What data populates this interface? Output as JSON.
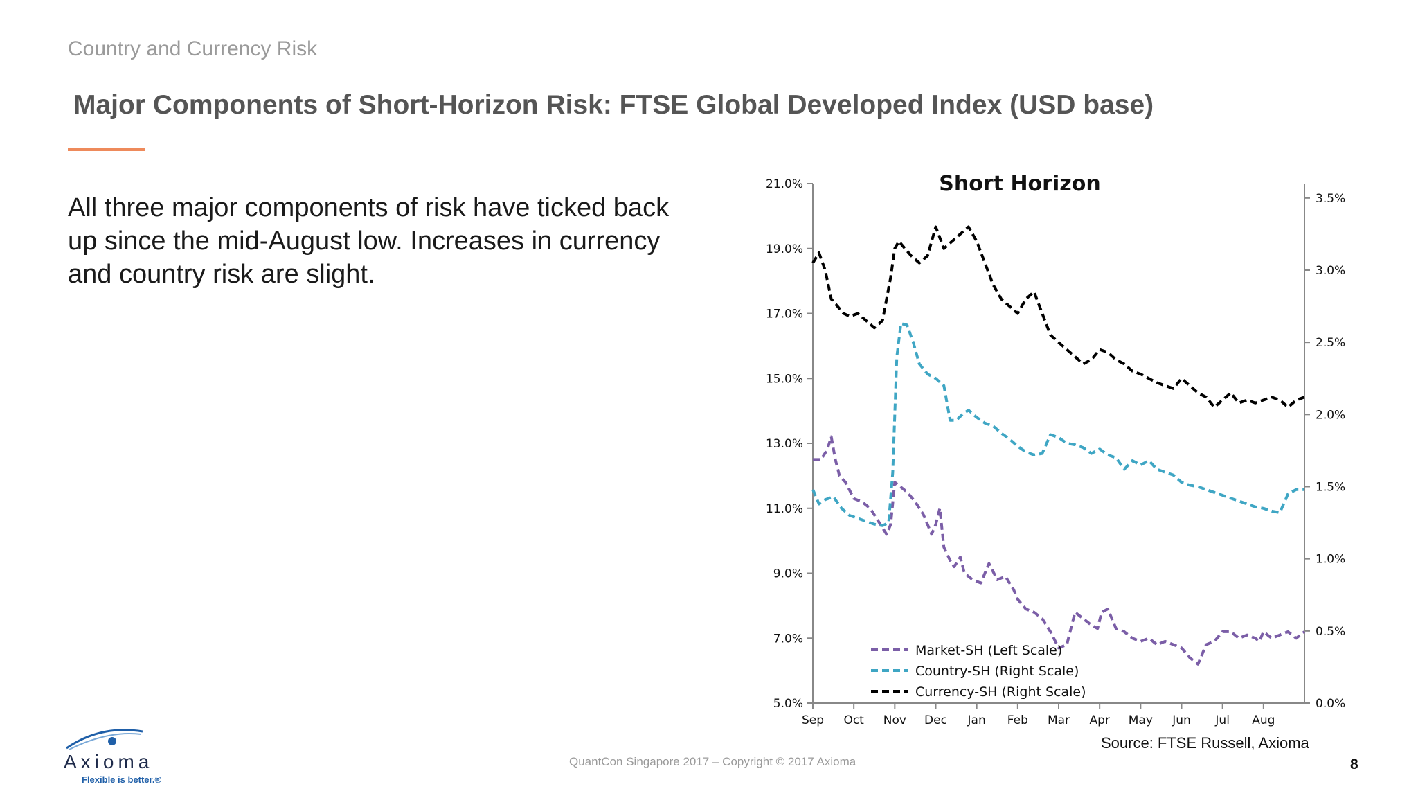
{
  "slide": {
    "section": "Country and Currency Risk",
    "title": "Major Components of Short-Horizon Risk: FTSE Global Developed Index (USD base)",
    "body": "All three major components of risk have ticked back up since the mid-August low. Increases in currency and country risk are slight.",
    "source": "Source: FTSE Russell, Axioma",
    "footer": "QuantCon Singapore 2017 – Copyright © 2017 Axioma",
    "page_number": "8",
    "logo": {
      "wordmark": "Axioma",
      "tagline": "Flexible is better.®"
    },
    "accent_color": "#ee8a5b"
  },
  "chart_data": {
    "type": "line",
    "title": "Short Horizon",
    "x_tick_labels": [
      "Sep",
      "Oct",
      "Nov",
      "Dec",
      "Jan",
      "Feb",
      "Mar",
      "Apr",
      "May",
      "Jun",
      "Jul",
      "Aug"
    ],
    "x_range": [
      0,
      12
    ],
    "y_left": {
      "ticks": [
        "5.0%",
        "7.0%",
        "9.0%",
        "11.0%",
        "13.0%",
        "15.0%",
        "17.0%",
        "19.0%",
        "21.0%"
      ],
      "range": [
        5,
        21
      ]
    },
    "y_right": {
      "ticks": [
        "0.0%",
        "0.5%",
        "1.0%",
        "1.5%",
        "2.0%",
        "2.5%",
        "3.0%",
        "3.5%"
      ],
      "range": [
        0,
        3.6
      ]
    },
    "legend_position": "bottom-left",
    "series": [
      {
        "name": "Market-SH (Left Scale)",
        "axis": "left",
        "color": "#7b5ea7",
        "x": [
          0,
          0.2,
          0.35,
          0.45,
          0.55,
          0.65,
          0.8,
          1.0,
          1.2,
          1.4,
          1.6,
          1.8,
          1.9,
          2.0,
          2.1,
          2.3,
          2.5,
          2.7,
          2.9,
          3.0,
          3.1,
          3.2,
          3.35,
          3.45,
          3.6,
          3.7,
          3.9,
          4.1,
          4.3,
          4.5,
          4.7,
          4.9,
          5.0,
          5.2,
          5.4,
          5.6,
          5.8,
          6.0,
          6.2,
          6.4,
          6.6,
          6.8,
          6.95,
          7.05,
          7.2,
          7.4,
          7.6,
          7.7,
          7.8,
          8.0,
          8.2,
          8.4,
          8.6,
          8.8,
          9.0,
          9.2,
          9.4,
          9.6,
          9.8,
          10.0,
          10.2,
          10.4,
          10.6,
          10.8,
          10.9,
          11.0,
          11.2,
          11.4,
          11.6,
          11.8,
          12.0
        ],
        "y": [
          12.5,
          12.5,
          12.8,
          13.2,
          12.5,
          12.0,
          11.8,
          11.3,
          11.2,
          11.0,
          10.6,
          10.2,
          10.5,
          11.8,
          11.7,
          11.5,
          11.2,
          10.8,
          10.2,
          10.5,
          11.0,
          9.8,
          9.4,
          9.2,
          9.5,
          9.0,
          8.8,
          8.7,
          9.3,
          8.8,
          8.9,
          8.5,
          8.2,
          7.9,
          7.8,
          7.6,
          7.2,
          6.7,
          6.8,
          7.8,
          7.6,
          7.4,
          7.3,
          7.8,
          7.9,
          7.3,
          7.2,
          7.1,
          7.0,
          6.9,
          7.0,
          6.8,
          6.9,
          6.8,
          6.7,
          6.4,
          6.2,
          6.8,
          6.9,
          7.2,
          7.2,
          7.0,
          7.1,
          7.0,
          6.9,
          7.2,
          7.0,
          7.1,
          7.2,
          7.0,
          7.2
        ]
      },
      {
        "name": "Country-SH (Right Scale)",
        "axis": "right",
        "color": "#3fa6c4",
        "x": [
          0,
          0.15,
          0.3,
          0.5,
          0.7,
          0.9,
          1.1,
          1.3,
          1.5,
          1.7,
          1.85,
          1.95,
          2.05,
          2.15,
          2.3,
          2.45,
          2.6,
          2.8,
          3.0,
          3.2,
          3.35,
          3.5,
          3.65,
          3.8,
          4.0,
          4.2,
          4.4,
          4.6,
          4.8,
          5.0,
          5.2,
          5.4,
          5.6,
          5.8,
          6.0,
          6.2,
          6.4,
          6.6,
          6.8,
          7.0,
          7.2,
          7.4,
          7.6,
          7.8,
          8.0,
          8.2,
          8.4,
          8.6,
          8.8,
          9.0,
          9.2,
          9.4,
          9.6,
          9.8,
          10.0,
          10.2,
          10.4,
          10.6,
          10.8,
          11.0,
          11.2,
          11.4,
          11.6,
          11.8,
          12.0
        ],
        "y": [
          1.48,
          1.38,
          1.41,
          1.43,
          1.35,
          1.3,
          1.28,
          1.26,
          1.24,
          1.23,
          1.25,
          1.6,
          2.4,
          2.63,
          2.62,
          2.5,
          2.35,
          2.28,
          2.25,
          2.2,
          1.96,
          1.96,
          2.0,
          2.03,
          1.98,
          1.94,
          1.92,
          1.87,
          1.83,
          1.78,
          1.74,
          1.72,
          1.73,
          1.86,
          1.84,
          1.8,
          1.79,
          1.77,
          1.73,
          1.76,
          1.72,
          1.7,
          1.62,
          1.68,
          1.65,
          1.68,
          1.62,
          1.6,
          1.58,
          1.53,
          1.51,
          1.5,
          1.48,
          1.46,
          1.44,
          1.42,
          1.4,
          1.38,
          1.36,
          1.35,
          1.33,
          1.32,
          1.45,
          1.48,
          1.48
        ]
      },
      {
        "name": "Currency-SH (Right Scale)",
        "axis": "right",
        "color": "#000000",
        "x": [
          0,
          0.15,
          0.3,
          0.45,
          0.6,
          0.75,
          0.9,
          1.1,
          1.3,
          1.5,
          1.7,
          1.9,
          2.0,
          2.1,
          2.25,
          2.4,
          2.6,
          2.8,
          3.0,
          3.2,
          3.4,
          3.6,
          3.8,
          4.0,
          4.2,
          4.4,
          4.6,
          4.8,
          5.0,
          5.2,
          5.4,
          5.6,
          5.8,
          6.0,
          6.2,
          6.4,
          6.6,
          6.8,
          7.0,
          7.2,
          7.4,
          7.6,
          7.8,
          8.0,
          8.2,
          8.4,
          8.6,
          8.8,
          9.0,
          9.2,
          9.4,
          9.6,
          9.8,
          10.0,
          10.2,
          10.4,
          10.6,
          10.8,
          11.0,
          11.2,
          11.4,
          11.6,
          11.8,
          12.0
        ],
        "y": [
          3.05,
          3.12,
          3.0,
          2.8,
          2.75,
          2.7,
          2.68,
          2.7,
          2.65,
          2.6,
          2.65,
          2.95,
          3.15,
          3.2,
          3.15,
          3.1,
          3.05,
          3.1,
          3.3,
          3.15,
          3.2,
          3.25,
          3.3,
          3.2,
          3.05,
          2.9,
          2.8,
          2.75,
          2.7,
          2.8,
          2.85,
          2.7,
          2.55,
          2.5,
          2.45,
          2.4,
          2.35,
          2.38,
          2.45,
          2.43,
          2.38,
          2.35,
          2.3,
          2.28,
          2.25,
          2.22,
          2.2,
          2.18,
          2.25,
          2.2,
          2.15,
          2.12,
          2.05,
          2.1,
          2.15,
          2.08,
          2.1,
          2.08,
          2.1,
          2.12,
          2.1,
          2.05,
          2.1,
          2.12
        ]
      }
    ]
  }
}
